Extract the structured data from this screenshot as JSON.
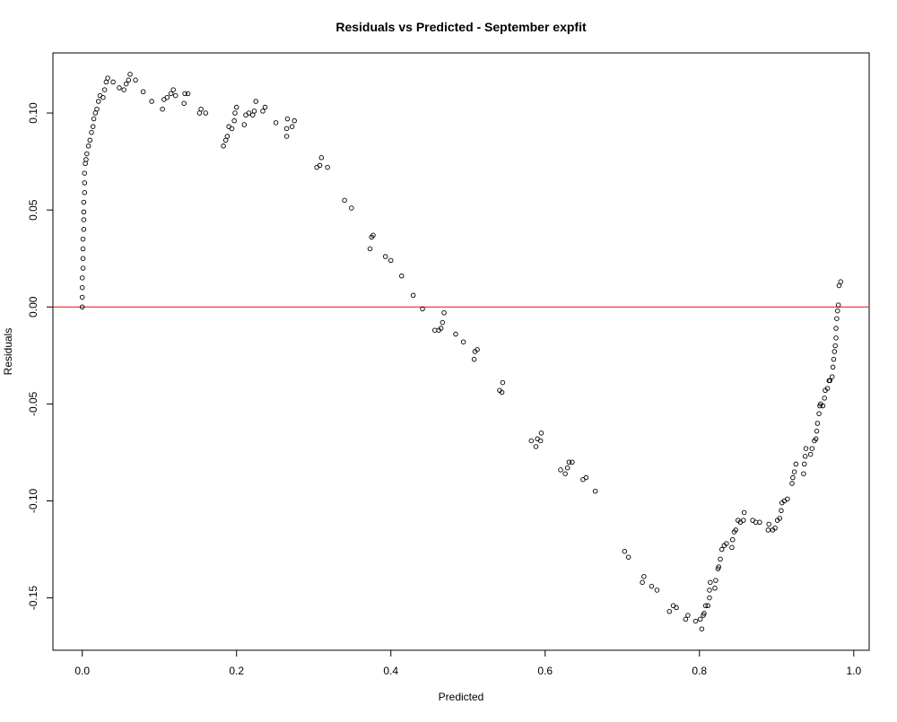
{
  "chart_data": {
    "type": "scatter",
    "title": "Residuals vs Predicted - September expfit",
    "xlabel": "Predicted",
    "ylabel": "Residuals",
    "xlim": [
      -0.038,
      1.02
    ],
    "ylim": [
      -0.177,
      0.131
    ],
    "x_ticks": [
      0.0,
      0.2,
      0.4,
      0.6,
      0.8,
      1.0
    ],
    "x_tick_labels": [
      "0.0",
      "0.2",
      "0.4",
      "0.6",
      "0.8",
      "1.0"
    ],
    "y_ticks": [
      -0.15,
      -0.1,
      -0.05,
      0.0,
      0.05,
      0.1
    ],
    "y_tick_labels": [
      "-0.15",
      "-0.10",
      "-0.05",
      "0.00",
      "0.05",
      "0.10"
    ],
    "reference_line": {
      "y": 0.0,
      "color": "#ff0000"
    },
    "point_color": "#000000",
    "grid": false,
    "points": [
      [
        0.0,
        0.0
      ],
      [
        0.0,
        0.005
      ],
      [
        0.0,
        0.01
      ],
      [
        0.0,
        0.015
      ],
      [
        0.001,
        0.02
      ],
      [
        0.001,
        0.025
      ],
      [
        0.001,
        0.03
      ],
      [
        0.001,
        0.035
      ],
      [
        0.002,
        0.04
      ],
      [
        0.002,
        0.045
      ],
      [
        0.002,
        0.049
      ],
      [
        0.002,
        0.054
      ],
      [
        0.003,
        0.059
      ],
      [
        0.003,
        0.064
      ],
      [
        0.003,
        0.069
      ],
      [
        0.004,
        0.074
      ],
      [
        0.005,
        0.076
      ],
      [
        0.006,
        0.079
      ],
      [
        0.008,
        0.083
      ],
      [
        0.01,
        0.086
      ],
      [
        0.012,
        0.09
      ],
      [
        0.014,
        0.093
      ],
      [
        0.015,
        0.097
      ],
      [
        0.017,
        0.1
      ],
      [
        0.019,
        0.102
      ],
      [
        0.021,
        0.106
      ],
      [
        0.023,
        0.109
      ],
      [
        0.027,
        0.108
      ],
      [
        0.029,
        0.112
      ],
      [
        0.031,
        0.116
      ],
      [
        0.033,
        0.118
      ],
      [
        0.04,
        0.116
      ],
      [
        0.048,
        0.113
      ],
      [
        0.054,
        0.112
      ],
      [
        0.057,
        0.115
      ],
      [
        0.06,
        0.117
      ],
      [
        0.062,
        0.12
      ],
      [
        0.069,
        0.117
      ],
      [
        0.079,
        0.111
      ],
      [
        0.09,
        0.106
      ],
      [
        0.104,
        0.102
      ],
      [
        0.106,
        0.107
      ],
      [
        0.11,
        0.108
      ],
      [
        0.115,
        0.11
      ],
      [
        0.118,
        0.112
      ],
      [
        0.121,
        0.109
      ],
      [
        0.132,
        0.105
      ],
      [
        0.133,
        0.11
      ],
      [
        0.137,
        0.11
      ],
      [
        0.152,
        0.1
      ],
      [
        0.154,
        0.102
      ],
      [
        0.16,
        0.1
      ],
      [
        0.183,
        0.083
      ],
      [
        0.186,
        0.086
      ],
      [
        0.188,
        0.088
      ],
      [
        0.19,
        0.093
      ],
      [
        0.194,
        0.092
      ],
      [
        0.197,
        0.096
      ],
      [
        0.198,
        0.1
      ],
      [
        0.2,
        0.103
      ],
      [
        0.21,
        0.094
      ],
      [
        0.212,
        0.099
      ],
      [
        0.216,
        0.1
      ],
      [
        0.221,
        0.099
      ],
      [
        0.223,
        0.101
      ],
      [
        0.225,
        0.106
      ],
      [
        0.234,
        0.101
      ],
      [
        0.237,
        0.103
      ],
      [
        0.251,
        0.095
      ],
      [
        0.265,
        0.088
      ],
      [
        0.265,
        0.092
      ],
      [
        0.266,
        0.097
      ],
      [
        0.272,
        0.093
      ],
      [
        0.275,
        0.096
      ],
      [
        0.304,
        0.072
      ],
      [
        0.308,
        0.073
      ],
      [
        0.31,
        0.077
      ],
      [
        0.318,
        0.072
      ],
      [
        0.34,
        0.055
      ],
      [
        0.349,
        0.051
      ],
      [
        0.373,
        0.03
      ],
      [
        0.375,
        0.036
      ],
      [
        0.377,
        0.037
      ],
      [
        0.393,
        0.026
      ],
      [
        0.4,
        0.024
      ],
      [
        0.414,
        0.016
      ],
      [
        0.429,
        0.006
      ],
      [
        0.441,
        -0.001
      ],
      [
        0.457,
        -0.012
      ],
      [
        0.462,
        -0.012
      ],
      [
        0.465,
        -0.011
      ],
      [
        0.467,
        -0.008
      ],
      [
        0.469,
        -0.003
      ],
      [
        0.484,
        -0.014
      ],
      [
        0.494,
        -0.018
      ],
      [
        0.508,
        -0.027
      ],
      [
        0.509,
        -0.023
      ],
      [
        0.512,
        -0.022
      ],
      [
        0.541,
        -0.043
      ],
      [
        0.544,
        -0.044
      ],
      [
        0.545,
        -0.039
      ],
      [
        0.582,
        -0.069
      ],
      [
        0.588,
        -0.072
      ],
      [
        0.59,
        -0.068
      ],
      [
        0.594,
        -0.069
      ],
      [
        0.595,
        -0.065
      ],
      [
        0.62,
        -0.084
      ],
      [
        0.626,
        -0.086
      ],
      [
        0.629,
        -0.083
      ],
      [
        0.631,
        -0.08
      ],
      [
        0.635,
        -0.08
      ],
      [
        0.649,
        -0.089
      ],
      [
        0.653,
        -0.088
      ],
      [
        0.665,
        -0.095
      ],
      [
        0.703,
        -0.126
      ],
      [
        0.708,
        -0.129
      ],
      [
        0.726,
        -0.142
      ],
      [
        0.728,
        -0.139
      ],
      [
        0.738,
        -0.144
      ],
      [
        0.745,
        -0.146
      ],
      [
        0.761,
        -0.157
      ],
      [
        0.766,
        -0.154
      ],
      [
        0.77,
        -0.155
      ],
      [
        0.782,
        -0.161
      ],
      [
        0.785,
        -0.159
      ],
      [
        0.795,
        -0.162
      ],
      [
        0.801,
        -0.161
      ],
      [
        0.803,
        -0.166
      ],
      [
        0.805,
        -0.159
      ],
      [
        0.806,
        -0.158
      ],
      [
        0.808,
        -0.154
      ],
      [
        0.811,
        -0.154
      ],
      [
        0.813,
        -0.15
      ],
      [
        0.813,
        -0.146
      ],
      [
        0.814,
        -0.142
      ],
      [
        0.82,
        -0.145
      ],
      [
        0.821,
        -0.141
      ],
      [
        0.824,
        -0.135
      ],
      [
        0.825,
        -0.134
      ],
      [
        0.827,
        -0.13
      ],
      [
        0.829,
        -0.125
      ],
      [
        0.832,
        -0.123
      ],
      [
        0.835,
        -0.122
      ],
      [
        0.842,
        -0.124
      ],
      [
        0.843,
        -0.12
      ],
      [
        0.845,
        -0.116
      ],
      [
        0.847,
        -0.115
      ],
      [
        0.85,
        -0.11
      ],
      [
        0.853,
        -0.111
      ],
      [
        0.857,
        -0.11
      ],
      [
        0.858,
        -0.106
      ],
      [
        0.869,
        -0.11
      ],
      [
        0.873,
        -0.111
      ],
      [
        0.878,
        -0.111
      ],
      [
        0.889,
        -0.115
      ],
      [
        0.89,
        -0.112
      ],
      [
        0.895,
        -0.115
      ],
      [
        0.898,
        -0.114
      ],
      [
        0.901,
        -0.11
      ],
      [
        0.904,
        -0.109
      ],
      [
        0.906,
        -0.105
      ],
      [
        0.907,
        -0.101
      ],
      [
        0.91,
        -0.1
      ],
      [
        0.914,
        -0.099
      ],
      [
        0.92,
        -0.091
      ],
      [
        0.921,
        -0.088
      ],
      [
        0.923,
        -0.085
      ],
      [
        0.925,
        -0.081
      ],
      [
        0.935,
        -0.086
      ],
      [
        0.936,
        -0.081
      ],
      [
        0.937,
        -0.077
      ],
      [
        0.938,
        -0.073
      ],
      [
        0.944,
        -0.076
      ],
      [
        0.946,
        -0.073
      ],
      [
        0.949,
        -0.069
      ],
      [
        0.951,
        -0.068
      ],
      [
        0.952,
        -0.064
      ],
      [
        0.953,
        -0.06
      ],
      [
        0.955,
        -0.055
      ],
      [
        0.956,
        -0.051
      ],
      [
        0.957,
        -0.05
      ],
      [
        0.96,
        -0.051
      ],
      [
        0.962,
        -0.047
      ],
      [
        0.963,
        -0.043
      ],
      [
        0.966,
        -0.042
      ],
      [
        0.968,
        -0.038
      ],
      [
        0.969,
        -0.038
      ],
      [
        0.972,
        -0.036
      ],
      [
        0.973,
        -0.031
      ],
      [
        0.974,
        -0.027
      ],
      [
        0.975,
        -0.023
      ],
      [
        0.976,
        -0.02
      ],
      [
        0.977,
        -0.016
      ],
      [
        0.977,
        -0.011
      ],
      [
        0.978,
        -0.006
      ],
      [
        0.979,
        -0.002
      ],
      [
        0.98,
        0.001
      ],
      [
        0.981,
        0.011
      ],
      [
        0.983,
        0.013
      ]
    ]
  }
}
